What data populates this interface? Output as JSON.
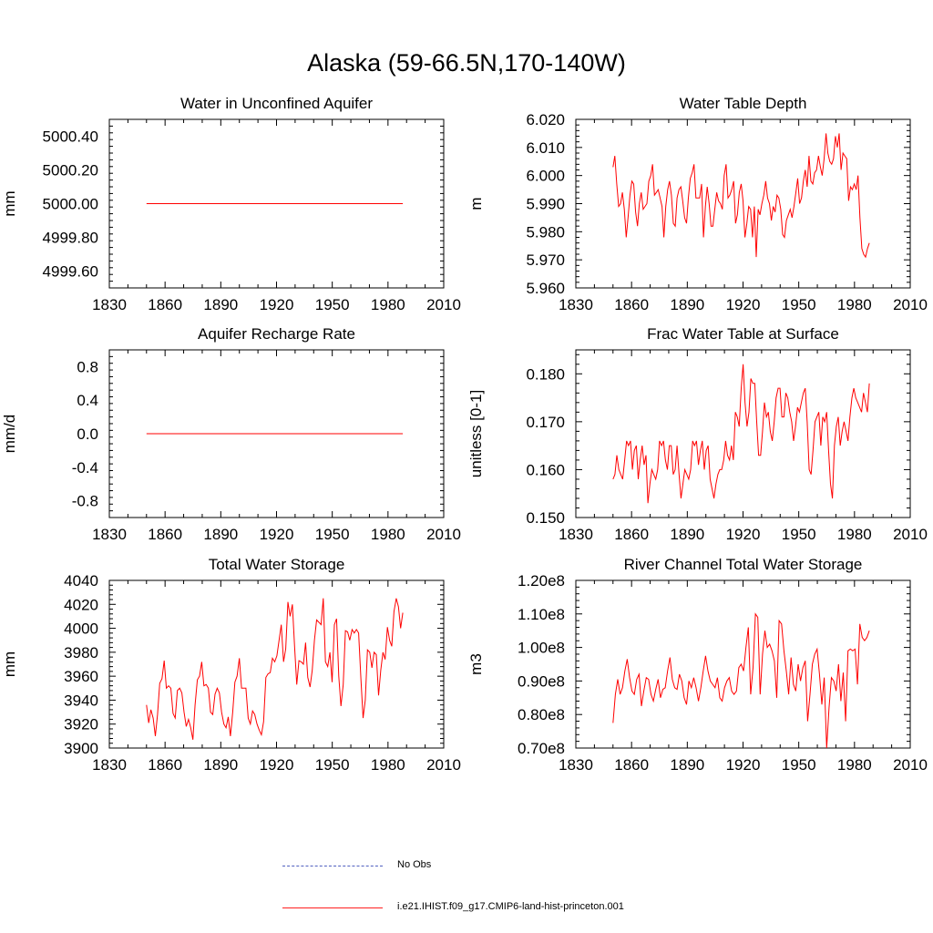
{
  "title": "Alaska (59-66.5N,170-140W)",
  "legend": {
    "obs_label": "No Obs",
    "obs_color": "#5060c0",
    "model_label": "i.e21.IHIST.f09_g17.CMIP6-land-hist-princeton.001",
    "model_color": "#ff0000"
  },
  "chart_data": [
    {
      "type": "line",
      "title": "Water in Unconfined Aquifer",
      "ylabel": "mm",
      "xlim": [
        1830,
        2010
      ],
      "ylim": [
        4999.5,
        5000.5
      ],
      "xticks": [
        "1830",
        "1860",
        "1890",
        "1920",
        "1950",
        "1980",
        "2010"
      ],
      "yticks": [
        4999.6,
        4999.8,
        5000.0,
        5000.2,
        5000.4
      ],
      "ytick_labels": [
        "4999.60",
        "4999.80",
        "5000.00",
        "5000.20",
        "5000.40"
      ],
      "x_start": 1850,
      "values": [
        5000,
        5000,
        5000,
        5000,
        5000,
        5000,
        5000,
        5000,
        5000,
        5000,
        5000,
        5000,
        5000,
        5000,
        5000,
        5000,
        5000,
        5000,
        5000,
        5000,
        5000,
        5000,
        5000,
        5000,
        5000,
        5000,
        5000,
        5000,
        5000,
        5000,
        5000,
        5000,
        5000,
        5000,
        5000,
        5000,
        5000,
        5000,
        5000,
        5000,
        5000,
        5000,
        5000,
        5000,
        5000,
        5000,
        5000,
        5000,
        5000,
        5000,
        5000,
        5000,
        5000,
        5000,
        5000,
        5000,
        5000,
        5000,
        5000,
        5000,
        5000,
        5000,
        5000,
        5000,
        5000,
        5000,
        5000,
        5000,
        5000,
        5000,
        5000,
        5000,
        5000,
        5000,
        5000,
        5000,
        5000,
        5000,
        5000,
        5000,
        5000,
        5000,
        5000,
        5000,
        5000,
        5000,
        5000,
        5000,
        5000,
        5000,
        5000,
        5000,
        5000,
        5000,
        5000,
        5000,
        5000,
        5000,
        5000,
        5000,
        5000,
        5000,
        5000,
        5000,
        5000,
        5000,
        5000,
        5000,
        5000,
        5000,
        5000,
        5000,
        5000,
        5000,
        5000,
        5000,
        5000,
        5000,
        5000,
        5000,
        5000,
        5000,
        5000,
        5000,
        5000,
        5000,
        5000,
        5000,
        5000,
        5000,
        5000,
        5000,
        5000,
        5000,
        5000,
        5000,
        5000,
        5000,
        5000,
        5000
      ]
    },
    {
      "type": "line",
      "title": "Water Table Depth",
      "ylabel": "m",
      "xlim": [
        1830,
        2010
      ],
      "ylim": [
        5.96,
        6.02
      ],
      "xticks": [
        "1830",
        "1860",
        "1890",
        "1920",
        "1950",
        "1980",
        "2010"
      ],
      "yticks": [
        5.96,
        5.97,
        5.98,
        5.99,
        6.0,
        6.01,
        6.02
      ],
      "ytick_labels": [
        "5.960",
        "5.970",
        "5.980",
        "5.990",
        "6.000",
        "6.010",
        "6.020"
      ],
      "x_start": 1850,
      "values": [
        6.003,
        6.007,
        5.997,
        5.989,
        5.99,
        5.994,
        5.988,
        5.978,
        5.985,
        5.993,
        5.998,
        5.997,
        5.987,
        5.982,
        5.99,
        5.994,
        5.988,
        5.989,
        5.99,
        5.998,
        6.0,
        6.004,
        5.993,
        5.994,
        5.995,
        5.992,
        5.989,
        5.978,
        5.989,
        5.995,
        5.998,
        5.993,
        5.983,
        5.982,
        5.992,
        5.995,
        5.996,
        5.991,
        5.985,
        5.983,
        5.992,
        5.999,
        6.001,
        6.004,
        5.992,
        5.992,
        5.992,
        5.997,
        5.978,
        5.989,
        5.996,
        5.99,
        5.982,
        5.982,
        5.988,
        5.994,
        5.991,
        5.99,
        5.988,
        6.0,
        6.004,
        5.992,
        5.993,
        5.995,
        5.998,
        5.983,
        5.986,
        5.994,
        5.997,
        5.991,
        5.978,
        5.983,
        5.989,
        5.988,
        5.978,
        5.989,
        5.971,
        5.988,
        5.986,
        5.99,
        5.993,
        5.998,
        5.992,
        5.99,
        5.984,
        5.989,
        5.987,
        5.993,
        5.992,
        5.988,
        5.979,
        5.978,
        5.984,
        5.986,
        5.988,
        5.985,
        5.989,
        5.994,
        5.999,
        5.99,
        5.992,
        5.998,
        6.002,
        5.996,
        6.007,
        5.998,
        5.997,
        6.001,
        6.002,
        6.007,
        6.003,
        6.0,
        6.006,
        6.015,
        6.008,
        6.005,
        6.004,
        6.006,
        6.014,
        6.01,
        6.015,
        6.002,
        6.008,
        6.007,
        6.006,
        5.991,
        5.996,
        5.995,
        5.997,
        5.995,
        6.0,
        5.985,
        5.974,
        5.972,
        5.971,
        5.974,
        5.976
      ]
    },
    {
      "type": "line",
      "title": "Aquifer Recharge Rate",
      "ylabel": "mm/d",
      "xlim": [
        1830,
        2010
      ],
      "ylim": [
        -1.0,
        1.0
      ],
      "xticks": [
        "1830",
        "1860",
        "1890",
        "1920",
        "1950",
        "1980",
        "2010"
      ],
      "yticks": [
        -0.8,
        -0.4,
        0.0,
        0.4,
        0.8
      ],
      "ytick_labels": [
        "-0.8",
        "-0.4",
        "0.0",
        "0.4",
        "0.8"
      ],
      "x_start": 1850,
      "values": [
        0,
        0,
        0,
        0,
        0,
        0,
        0,
        0,
        0,
        0,
        0,
        0,
        0,
        0,
        0,
        0,
        0,
        0,
        0,
        0,
        0,
        0,
        0,
        0,
        0,
        0,
        0,
        0,
        0,
        0,
        0,
        0,
        0,
        0,
        0,
        0,
        0,
        0,
        0,
        0,
        0,
        0,
        0,
        0,
        0,
        0,
        0,
        0,
        0,
        0,
        0,
        0,
        0,
        0,
        0,
        0,
        0,
        0,
        0,
        0,
        0,
        0,
        0,
        0,
        0,
        0,
        0,
        0,
        0,
        0,
        0,
        0,
        0,
        0,
        0,
        0,
        0,
        0,
        0,
        0,
        0,
        0,
        0,
        0,
        0,
        0,
        0,
        0,
        0,
        0,
        0,
        0,
        0,
        0,
        0,
        0,
        0,
        0,
        0,
        0,
        0,
        0,
        0,
        0,
        0,
        0,
        0,
        0,
        0,
        0,
        0,
        0,
        0,
        0,
        0,
        0,
        0,
        0,
        0,
        0,
        0,
        0,
        0,
        0,
        0,
        0,
        0,
        0,
        0,
        0,
        0,
        0,
        0,
        0,
        0,
        0,
        0,
        0,
        0,
        0
      ]
    },
    {
      "type": "line",
      "title": "Frac Water Table at Surface",
      "ylabel": "unitless [0-1]",
      "xlim": [
        1830,
        2010
      ],
      "ylim": [
        0.15,
        0.185
      ],
      "xticks": [
        "1830",
        "1860",
        "1890",
        "1920",
        "1950",
        "1980",
        "2010"
      ],
      "yticks": [
        0.15,
        0.16,
        0.17,
        0.18
      ],
      "ytick_labels": [
        "0.150",
        "0.160",
        "0.170",
        "0.180"
      ],
      "x_start": 1850,
      "values": [
        0.158,
        0.159,
        0.163,
        0.16,
        0.159,
        0.158,
        0.162,
        0.166,
        0.165,
        0.166,
        0.16,
        0.164,
        0.165,
        0.158,
        0.162,
        0.165,
        0.161,
        0.163,
        0.153,
        0.157,
        0.16,
        0.159,
        0.158,
        0.16,
        0.166,
        0.165,
        0.166,
        0.162,
        0.16,
        0.165,
        0.165,
        0.159,
        0.16,
        0.165,
        0.159,
        0.154,
        0.157,
        0.16,
        0.159,
        0.158,
        0.16,
        0.166,
        0.165,
        0.166,
        0.161,
        0.164,
        0.166,
        0.16,
        0.164,
        0.165,
        0.158,
        0.156,
        0.154,
        0.157,
        0.159,
        0.16,
        0.16,
        0.162,
        0.166,
        0.163,
        0.162,
        0.165,
        0.162,
        0.172,
        0.171,
        0.169,
        0.177,
        0.182,
        0.174,
        0.169,
        0.172,
        0.179,
        0.178,
        0.178,
        0.17,
        0.163,
        0.163,
        0.168,
        0.174,
        0.171,
        0.172,
        0.168,
        0.166,
        0.17,
        0.175,
        0.177,
        0.177,
        0.171,
        0.171,
        0.176,
        0.175,
        0.172,
        0.17,
        0.166,
        0.169,
        0.173,
        0.172,
        0.174,
        0.176,
        0.177,
        0.17,
        0.16,
        0.159,
        0.164,
        0.17,
        0.171,
        0.172,
        0.165,
        0.171,
        0.17,
        0.172,
        0.164,
        0.157,
        0.154,
        0.165,
        0.169,
        0.171,
        0.165,
        0.168,
        0.17,
        0.168,
        0.166,
        0.171,
        0.175,
        0.177,
        0.175,
        0.174,
        0.173,
        0.172,
        0.176,
        0.174,
        0.172,
        0.178
      ]
    },
    {
      "type": "line",
      "title": "Total Water Storage",
      "ylabel": "mm",
      "xlim": [
        1830,
        2010
      ],
      "ylim": [
        3900,
        4040
      ],
      "xticks": [
        "1830",
        "1860",
        "1890",
        "1920",
        "1950",
        "1980",
        "2010"
      ],
      "yticks": [
        3900,
        3920,
        3940,
        3960,
        3980,
        4000,
        4020,
        4040
      ],
      "ytick_labels": [
        "3900",
        "3920",
        "3940",
        "3960",
        "3980",
        "4000",
        "4020",
        "4040"
      ],
      "x_start": 1850,
      "values": [
        3936,
        3921,
        3932,
        3925,
        3910,
        3928,
        3954,
        3958,
        3973,
        3950,
        3952,
        3950,
        3929,
        3925,
        3948,
        3950,
        3946,
        3930,
        3918,
        3924,
        3917,
        3907,
        3936,
        3957,
        3960,
        3972,
        3952,
        3953,
        3950,
        3930,
        3928,
        3945,
        3950,
        3946,
        3930,
        3920,
        3917,
        3926,
        3910,
        3930,
        3955,
        3960,
        3975,
        3950,
        3950,
        3950,
        3925,
        3920,
        3931,
        3928,
        3920,
        3915,
        3911,
        3922,
        3959,
        3962,
        3963,
        3975,
        3972,
        3977,
        3990,
        4003,
        3972,
        3983,
        4022,
        4010,
        4020,
        3985,
        3953,
        3973,
        3972,
        3970,
        3988,
        3959,
        3951,
        3965,
        3990,
        4007,
        4005,
        4003,
        4025,
        3972,
        3968,
        3980,
        3955,
        4003,
        4008,
        3960,
        3935,
        3953,
        3998,
        3997,
        3990,
        3999,
        3996,
        3999,
        3996,
        3958,
        3925,
        3940,
        3982,
        3980,
        3967,
        3980,
        3978,
        3944,
        3965,
        3980,
        3974,
        4001,
        3990,
        3985,
        4014,
        4025,
        4018,
        4000,
        4013
      ]
    },
    {
      "type": "line",
      "title": "River Channel Total Water Storage",
      "ylabel": "m3",
      "xlim": [
        1830,
        2010
      ],
      "ylim": [
        0.7,
        1.2
      ],
      "xticks": [
        "1830",
        "1860",
        "1890",
        "1920",
        "1950",
        "1980",
        "2010"
      ],
      "yticks": [
        0.7,
        0.8,
        0.9,
        1.0,
        1.1,
        1.2
      ],
      "ytick_labels": [
        "0.70e8",
        "0.80e8",
        "0.90e8",
        "1.00e8",
        "1.10e8",
        "1.20e8"
      ],
      "x_start": 1850,
      "values": [
        0.775,
        0.86,
        0.905,
        0.86,
        0.88,
        0.93,
        0.965,
        0.91,
        0.87,
        0.86,
        0.905,
        0.92,
        0.825,
        0.87,
        0.91,
        0.905,
        0.86,
        0.84,
        0.875,
        0.905,
        0.85,
        0.875,
        0.88,
        0.93,
        0.97,
        0.905,
        0.88,
        0.875,
        0.92,
        0.9,
        0.85,
        0.83,
        0.9,
        0.88,
        0.91,
        0.88,
        0.84,
        0.88,
        0.93,
        0.975,
        0.93,
        0.9,
        0.89,
        0.88,
        0.91,
        0.85,
        0.84,
        0.88,
        0.9,
        0.91,
        0.87,
        0.86,
        0.87,
        0.94,
        0.95,
        0.93,
        1.0,
        1.06,
        0.86,
        0.94,
        1.1,
        1.09,
        0.86,
        0.98,
        1.05,
        1.0,
        1.01,
        0.99,
        0.96,
        0.85,
        1.08,
        1.07,
        0.99,
        0.93,
        0.86,
        0.97,
        0.89,
        0.87,
        0.95,
        0.9,
        0.94,
        0.96,
        0.78,
        0.86,
        0.95,
        0.98,
        0.995,
        0.92,
        0.83,
        0.91,
        0.7,
        0.82,
        0.91,
        0.9,
        0.87,
        0.95,
        0.84,
        0.925,
        0.78,
        0.99,
        0.995,
        0.99,
        0.995,
        0.89,
        1.07,
        1.03,
        1.02,
        1.03,
        1.05
      ]
    }
  ]
}
